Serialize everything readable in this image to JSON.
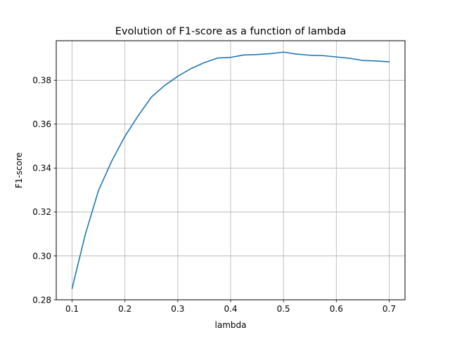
{
  "chart_data": {
    "type": "line",
    "title": "Evolution of F1-score as a function of lambda",
    "xlabel": "lambda",
    "ylabel": "F1-score",
    "xlim": [
      0.07,
      0.73
    ],
    "ylim": [
      0.28,
      0.398
    ],
    "xticks": [
      0.1,
      0.2,
      0.3,
      0.4,
      0.5,
      0.6,
      0.7
    ],
    "xtick_labels": [
      "0.1",
      "0.2",
      "0.3",
      "0.4",
      "0.5",
      "0.6",
      "0.7"
    ],
    "yticks": [
      0.28,
      0.3,
      0.32,
      0.34,
      0.36,
      0.38
    ],
    "ytick_labels": [
      "0.28",
      "0.30",
      "0.32",
      "0.34",
      "0.36",
      "0.38"
    ],
    "grid": true,
    "series": [
      {
        "color": "#1f77b4",
        "x": [
          0.1,
          0.125,
          0.15,
          0.175,
          0.2,
          0.225,
          0.25,
          0.275,
          0.3,
          0.325,
          0.35,
          0.375,
          0.4,
          0.425,
          0.45,
          0.475,
          0.5,
          0.525,
          0.55,
          0.575,
          0.6,
          0.625,
          0.65,
          0.675,
          0.7
        ],
        "y": [
          0.2852,
          0.3098,
          0.3298,
          0.3432,
          0.3545,
          0.3638,
          0.3723,
          0.3776,
          0.3818,
          0.3853,
          0.388,
          0.3901,
          0.3904,
          0.3915,
          0.3917,
          0.3921,
          0.3928,
          0.3919,
          0.3914,
          0.3912,
          0.3906,
          0.39,
          0.389,
          0.3888,
          0.3884
        ]
      }
    ]
  }
}
